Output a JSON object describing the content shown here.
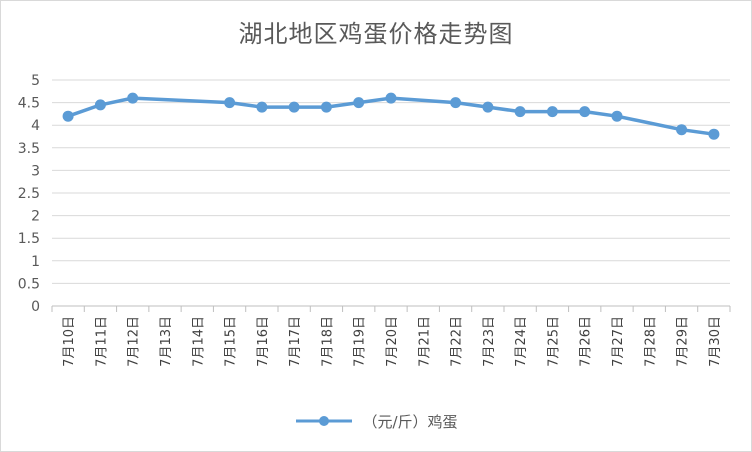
{
  "chart_data": {
    "type": "line",
    "title": "湖北地区鸡蛋价格走势图",
    "categories": [
      "7月10日",
      "7月11日",
      "7月12日",
      "7月13日",
      "7月14日",
      "7月15日",
      "7月16日",
      "7月17日",
      "7月18日",
      "7月19日",
      "7月20日",
      "7月21日",
      "7月22日",
      "7月23日",
      "7月24日",
      "7月25日",
      "7月26日",
      "7月27日",
      "7月28日",
      "7月29日",
      "7月30日"
    ],
    "series": [
      {
        "name": "（元/斤）鸡蛋",
        "color": "#5b9bd5",
        "values": [
          4.2,
          4.45,
          4.6,
          null,
          null,
          4.5,
          4.4,
          4.4,
          4.4,
          4.5,
          4.6,
          null,
          4.5,
          4.4,
          4.3,
          4.3,
          4.3,
          4.2,
          null,
          3.9,
          3.8
        ]
      }
    ],
    "ylim": [
      0,
      5
    ],
    "yticks": [
      0,
      0.5,
      1,
      1.5,
      2,
      2.5,
      3,
      3.5,
      4,
      4.5,
      5
    ],
    "ytick_labels": [
      "0",
      "0.5",
      "1",
      "1.5",
      "2",
      "2.5",
      "3",
      "3.5",
      "4",
      "4.5",
      "5"
    ],
    "grid": true,
    "legend_position": "bottom"
  }
}
